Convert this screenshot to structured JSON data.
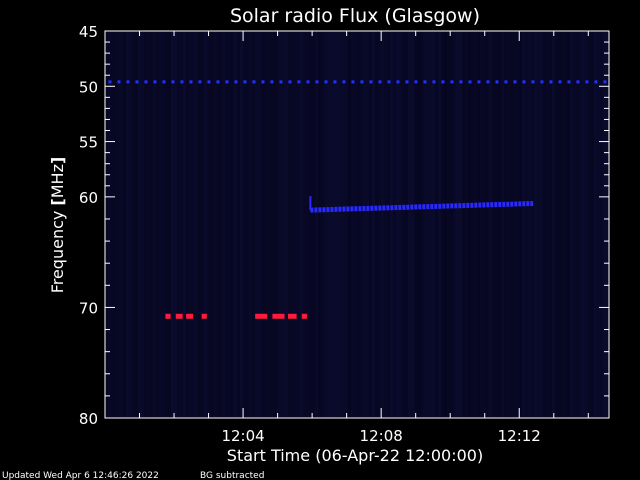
{
  "chart_data": {
    "type": "heatmap",
    "title": "Solar radio Flux (Glasgow)",
    "xlabel": "Start Time (06-Apr-22 12:00:00)",
    "ylabel_text": "Frequency ",
    "ylabel_unit": "MHz",
    "x_unit": "minutes after 12:00:00",
    "xlim": [
      0,
      14.6
    ],
    "ylim": [
      45,
      80
    ],
    "y_inverted": true,
    "x_ticks": [
      {
        "value": 4,
        "label": "12:04"
      },
      {
        "value": 8,
        "label": "12:08"
      },
      {
        "value": 12,
        "label": "12:12"
      }
    ],
    "y_ticks": [
      {
        "value": 45,
        "label": "45"
      },
      {
        "value": 50,
        "label": "50"
      },
      {
        "value": 55,
        "label": "55"
      },
      {
        "value": 60,
        "label": "60"
      },
      {
        "value": 70,
        "label": "70"
      },
      {
        "value": 80,
        "label": "80"
      }
    ],
    "y_minor_ticks": [
      46,
      47,
      48,
      49,
      51,
      52,
      53,
      54,
      56,
      57,
      58,
      59,
      62,
      64,
      66,
      68,
      72,
      74,
      76,
      78
    ],
    "features": [
      {
        "name": "constant band",
        "freq": 49.6,
        "x_start": 0.1,
        "x_end": 14.6,
        "color": "#2233ff"
      },
      {
        "name": "post-event band",
        "freq_start": 61.2,
        "freq_end": 60.6,
        "x_start": 5.95,
        "x_end": 12.4,
        "color": "#2a2aff"
      },
      {
        "name": "interference bursts",
        "freq": 70.8,
        "color": "#ff1a3c",
        "segments": [
          [
            1.75,
            1.9
          ],
          [
            2.05,
            2.25
          ],
          [
            2.35,
            2.55
          ],
          [
            2.8,
            2.95
          ],
          [
            4.35,
            4.7
          ],
          [
            4.85,
            5.2
          ],
          [
            5.3,
            5.55
          ],
          [
            5.7,
            5.85
          ]
        ]
      }
    ],
    "background_color": "#06061e",
    "grid": false
  },
  "footer": {
    "updated": "Updated Wed Apr  6 12:46:26 2022",
    "note": "BG subtracted"
  }
}
